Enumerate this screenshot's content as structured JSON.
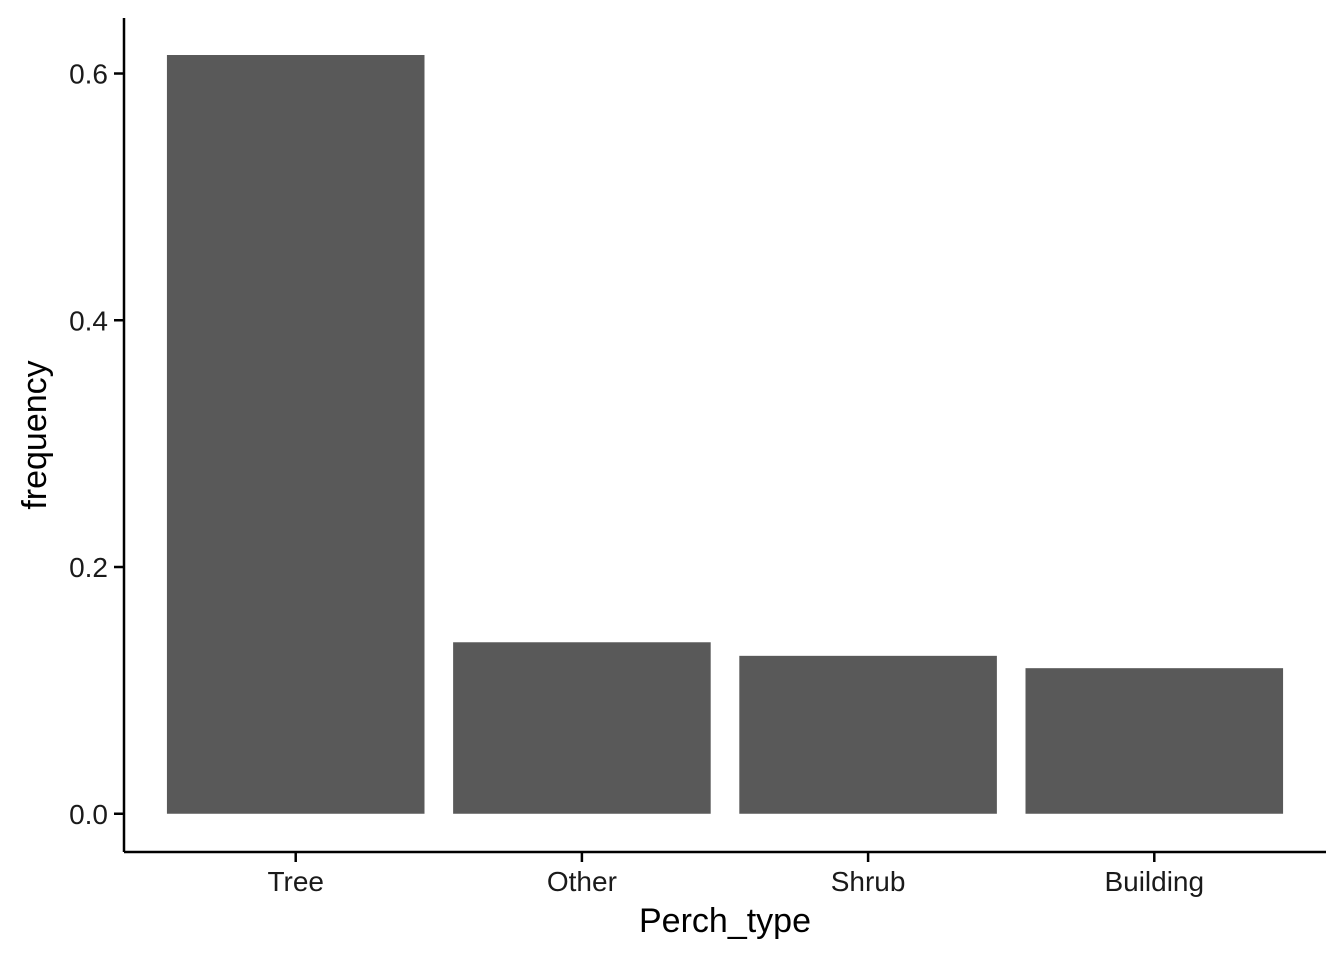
{
  "chart_data": {
    "type": "bar",
    "title": "",
    "xlabel": "Perch_type",
    "ylabel": "frequency",
    "categories": [
      "Tree",
      "Other",
      "Shrub",
      "Building"
    ],
    "values": [
      0.615,
      0.139,
      0.128,
      0.118
    ],
    "ylim": [
      -0.031,
      0.645
    ],
    "yticks": [
      0.0,
      0.2,
      0.4,
      0.6
    ],
    "ytick_labels": [
      "0.0",
      "0.2",
      "0.4",
      "0.6"
    ],
    "grid": false,
    "legend": "none",
    "bar_color": "#595959",
    "axis_color": "#000000"
  }
}
